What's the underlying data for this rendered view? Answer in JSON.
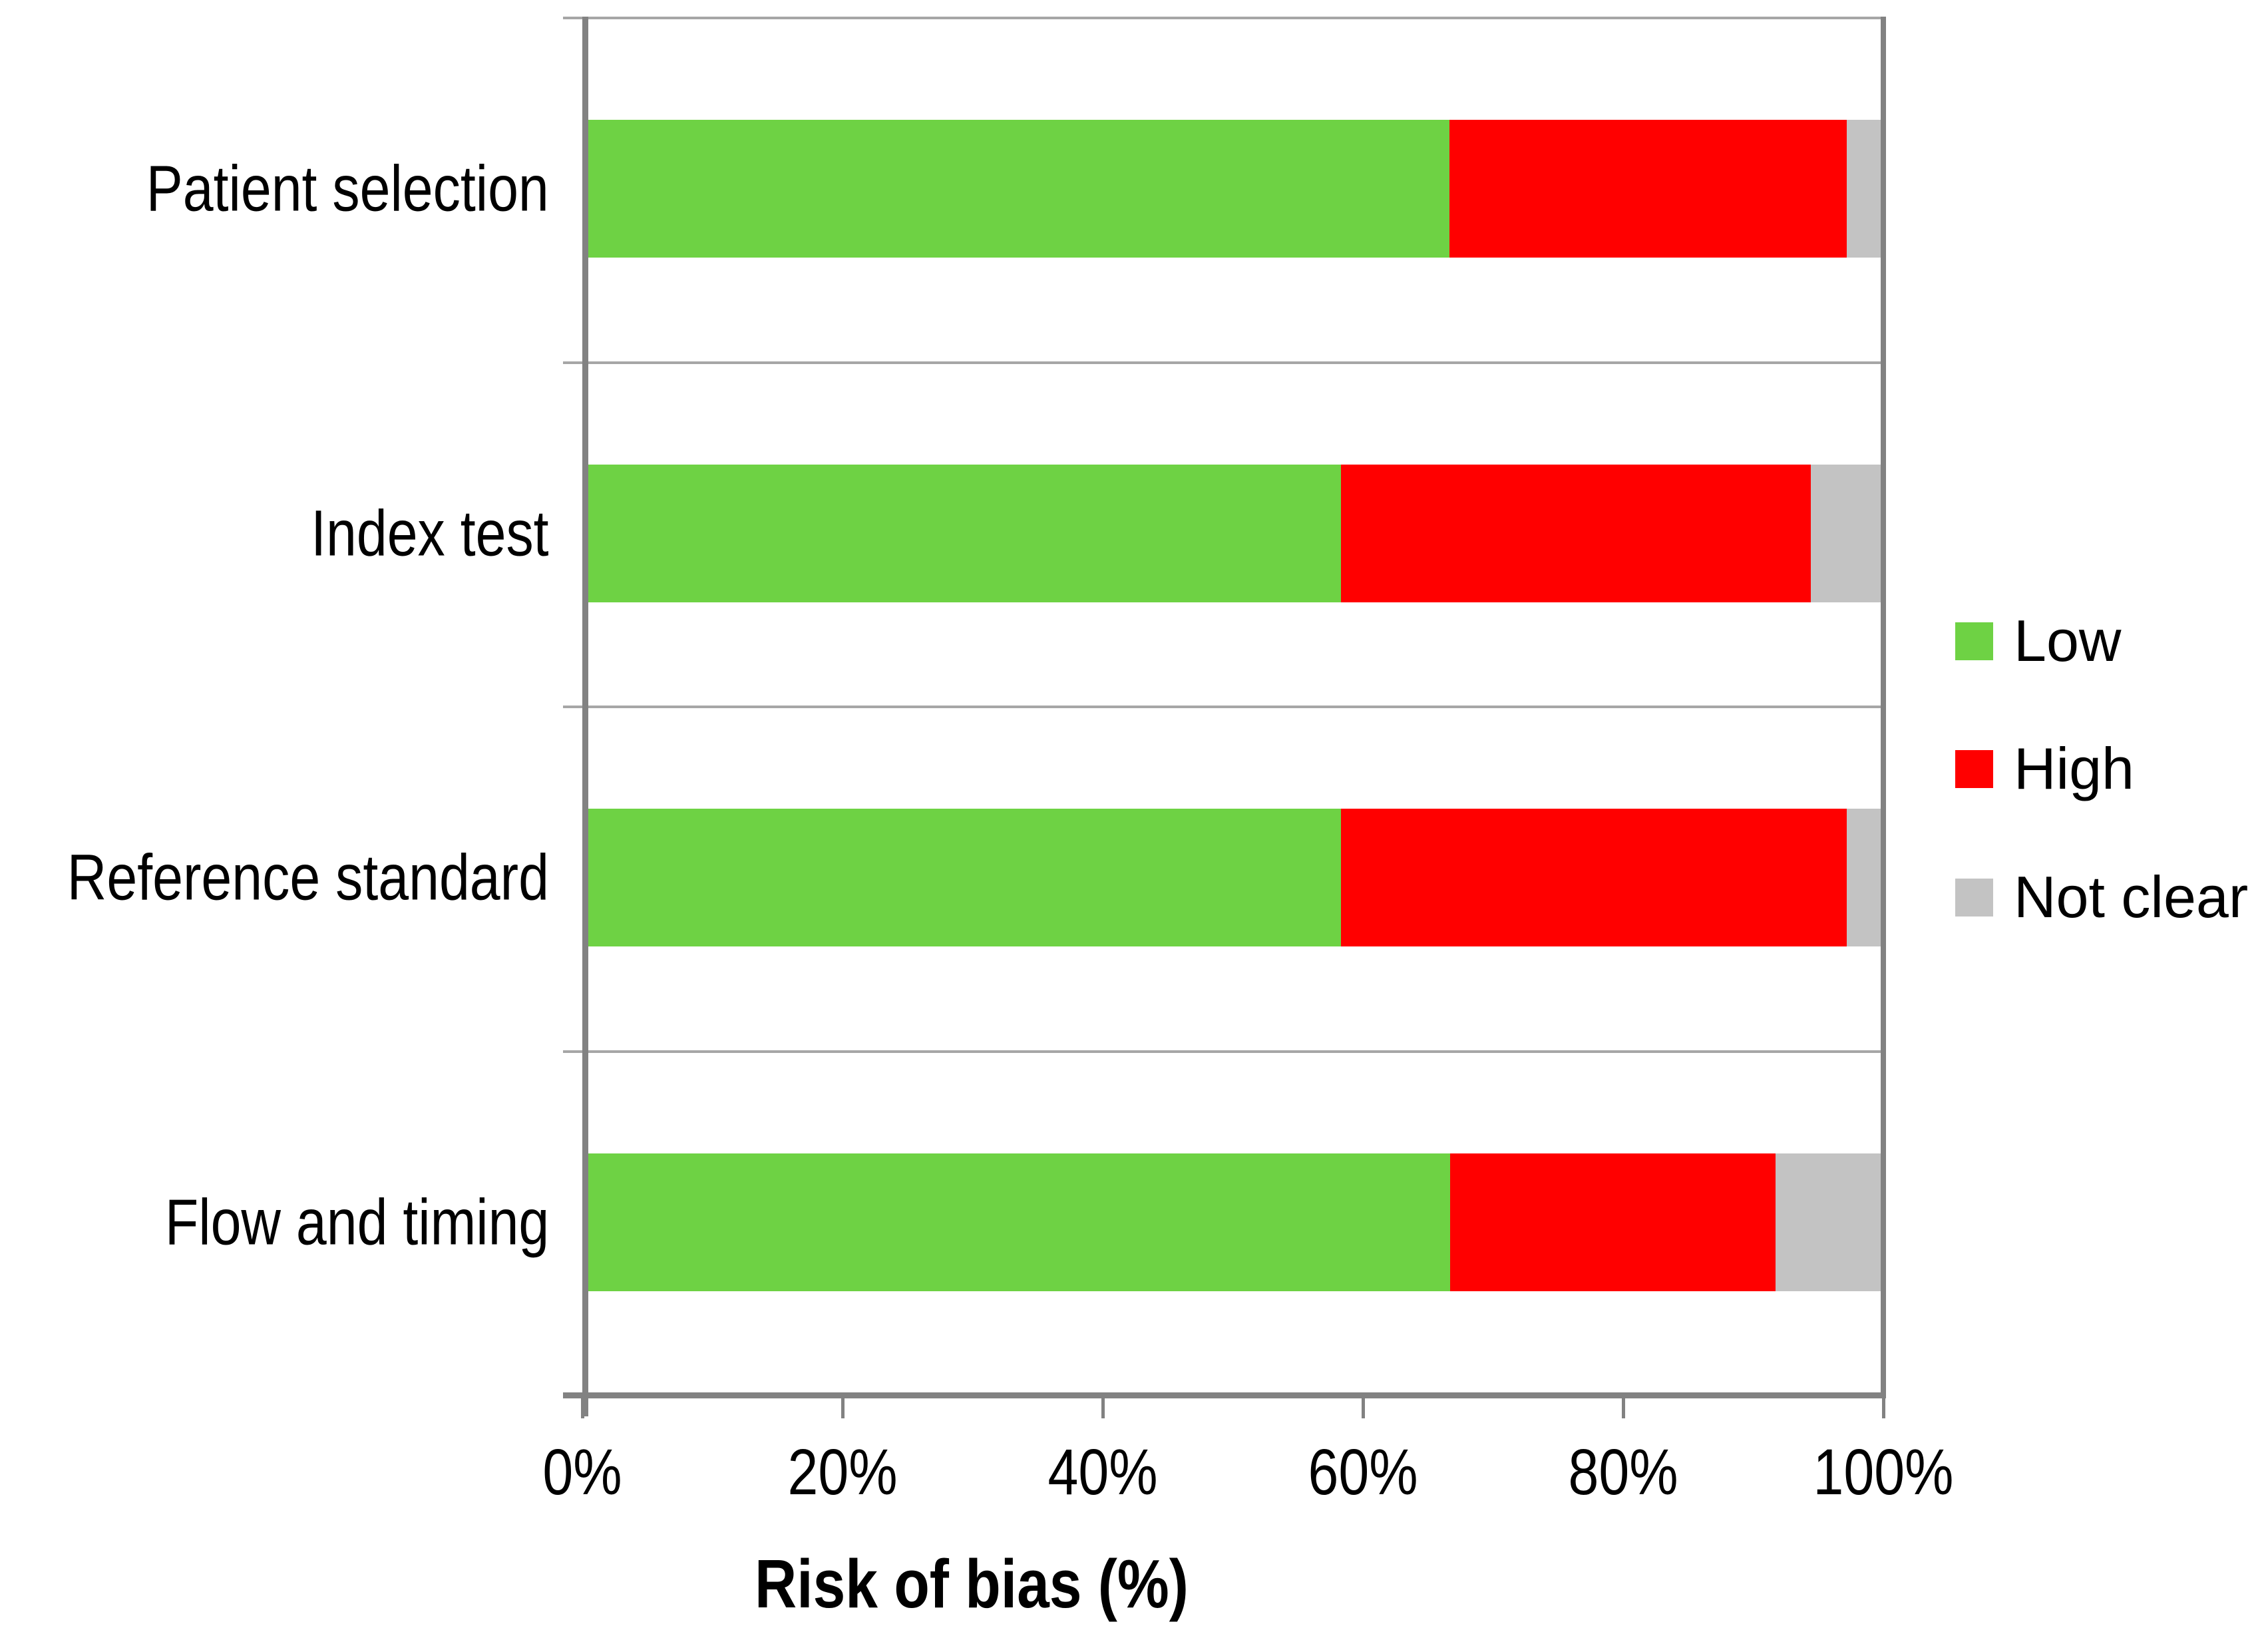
{
  "chart_data": {
    "type": "bar",
    "orientation": "horizontal",
    "stacked": true,
    "unit": "percent",
    "categories": [
      "Patient selection",
      "Index test",
      "Reference standard",
      "Flow and timing"
    ],
    "series": [
      {
        "name": "Low",
        "color": "#6ED244",
        "values": [
          66.7,
          58.3,
          58.3,
          66.7
        ]
      },
      {
        "name": "High",
        "color": "#FF0000",
        "values": [
          30.6,
          36.1,
          38.9,
          25.0
        ]
      },
      {
        "name": "Not clear",
        "color": "#C3C3C3",
        "values": [
          2.8,
          5.6,
          2.8,
          8.3
        ]
      }
    ],
    "xlabel": "Risk of bias (%)",
    "x_ticks": [
      "0%",
      "20%",
      "40%",
      "60%",
      "80%",
      "100%"
    ],
    "xlim": [
      0,
      100
    ],
    "grid": "horizontal category separators only",
    "legend_position": "right"
  },
  "colors": {
    "low": "#6ED244",
    "high": "#FF0000",
    "not_clear": "#C3C3C3",
    "axis_line": "#828282",
    "separator_line": "#A6A6A6",
    "text": "#000000",
    "background": "#FFFFFF"
  }
}
